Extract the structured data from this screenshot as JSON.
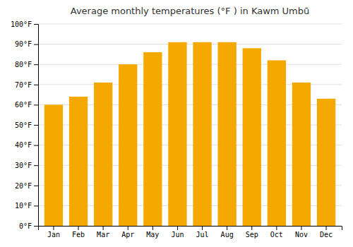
{
  "chart_data": {
    "type": "bar",
    "title": "Average monthly temperatures (°F ) in Kawm Umbū",
    "categories": [
      "Jan",
      "Feb",
      "Mar",
      "Apr",
      "May",
      "Jun",
      "Jul",
      "Aug",
      "Sep",
      "Oct",
      "Nov",
      "Dec"
    ],
    "values": [
      60,
      64,
      71,
      80,
      86,
      91,
      91,
      91,
      88,
      82,
      71,
      63
    ],
    "color": "#F5A800",
    "ylim": [
      0,
      100
    ],
    "yticks": [
      {
        "value": 0,
        "label": "0°F"
      },
      {
        "value": 10,
        "label": "10°F"
      },
      {
        "value": 20,
        "label": "20°F"
      },
      {
        "value": 30,
        "label": "30°F"
      },
      {
        "value": 40,
        "label": "40°F"
      },
      {
        "value": 50,
        "label": "50°F"
      },
      {
        "value": 60,
        "label": "60°F"
      },
      {
        "value": 70,
        "label": "70°F"
      },
      {
        "value": 80,
        "label": "80°F"
      },
      {
        "value": 90,
        "label": "90°F"
      },
      {
        "value": 100,
        "label": "100°F"
      }
    ],
    "grid": true
  }
}
